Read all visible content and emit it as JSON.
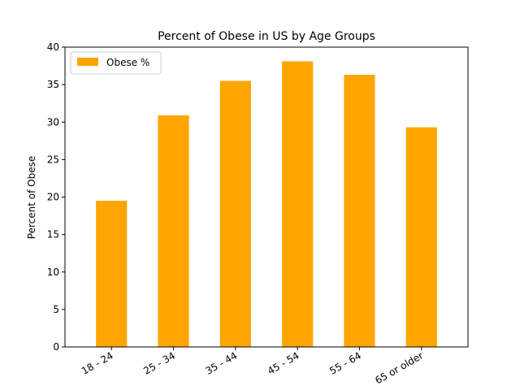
{
  "chart_data": {
    "type": "bar",
    "title": "Percent of Obese in US by Age Groups",
    "xlabel": "",
    "ylabel": "Percent of Obese",
    "categories": [
      "18 - 24",
      "25 - 34",
      "35 - 44",
      "45 - 54",
      "55 - 64",
      "65 or older"
    ],
    "series": [
      {
        "name": "Obese %",
        "values": [
          19.5,
          30.9,
          35.5,
          38.1,
          36.3,
          29.3
        ],
        "color": "#FFA500"
      }
    ],
    "ylim": [
      0,
      40
    ],
    "yticks": [
      "0",
      "5",
      "10",
      "15",
      "20",
      "25",
      "30",
      "35",
      "40"
    ],
    "grid": false,
    "legend_position": "upper-left"
  }
}
